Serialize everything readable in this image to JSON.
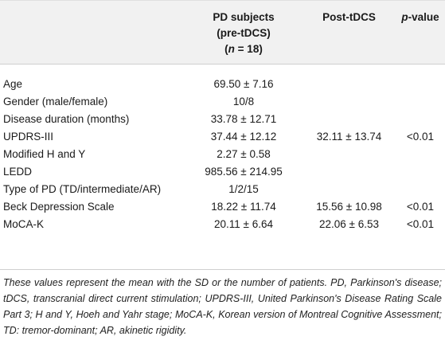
{
  "header": {
    "col0": "",
    "col1_line1": "PD subjects",
    "col1_line2": "(pre-tDCS)",
    "col1_line3_open": "(",
    "col1_line3_n": "n",
    "col1_line3_rest": " = 18)",
    "col2": "Post-tDCS",
    "col3_p": "p",
    "col3_rest": "-value"
  },
  "rows": [
    {
      "label": "Age",
      "pre": "69.50 ± 7.16",
      "post": "",
      "p": ""
    },
    {
      "label": "Gender (male/female)",
      "pre": "10/8",
      "post": "",
      "p": ""
    },
    {
      "label": "Disease duration (months)",
      "pre": "33.78 ± 12.71",
      "post": "",
      "p": ""
    },
    {
      "label": "UPDRS-III",
      "pre": "37.44 ± 12.12",
      "post": "32.11 ± 13.74",
      "p": "<0.01"
    },
    {
      "label": "Modified H and Y",
      "pre": "2.27 ± 0.58",
      "post": "",
      "p": ""
    },
    {
      "label": "LEDD",
      "pre": "985.56 ± 214.95",
      "post": "",
      "p": ""
    },
    {
      "label": "Type of PD (TD/intermediate/AR)",
      "pre": "1/2/15",
      "post": "",
      "p": ""
    },
    {
      "label": "Beck Depression Scale",
      "pre": "18.22 ± 11.74",
      "post": "15.56 ± 10.98",
      "p": "<0.01"
    },
    {
      "label": "MoCA-K",
      "pre": "20.11 ± 6.64",
      "post": "22.06 ± 6.53",
      "p": "<0.01"
    }
  ],
  "footnote": "These values represent the mean with the SD or the number of patients. PD, Parkinson's disease; tDCS, transcranial direct current stimulation; UPDRS-III, United Parkinson's Disease Rating Scale Part 3; H and Y, Hoeh and Yahr stage; MoCA-K, Korean version of Montreal Cognitive Assessment; TD: tremor-dominant; AR, akinetic rigidity."
}
